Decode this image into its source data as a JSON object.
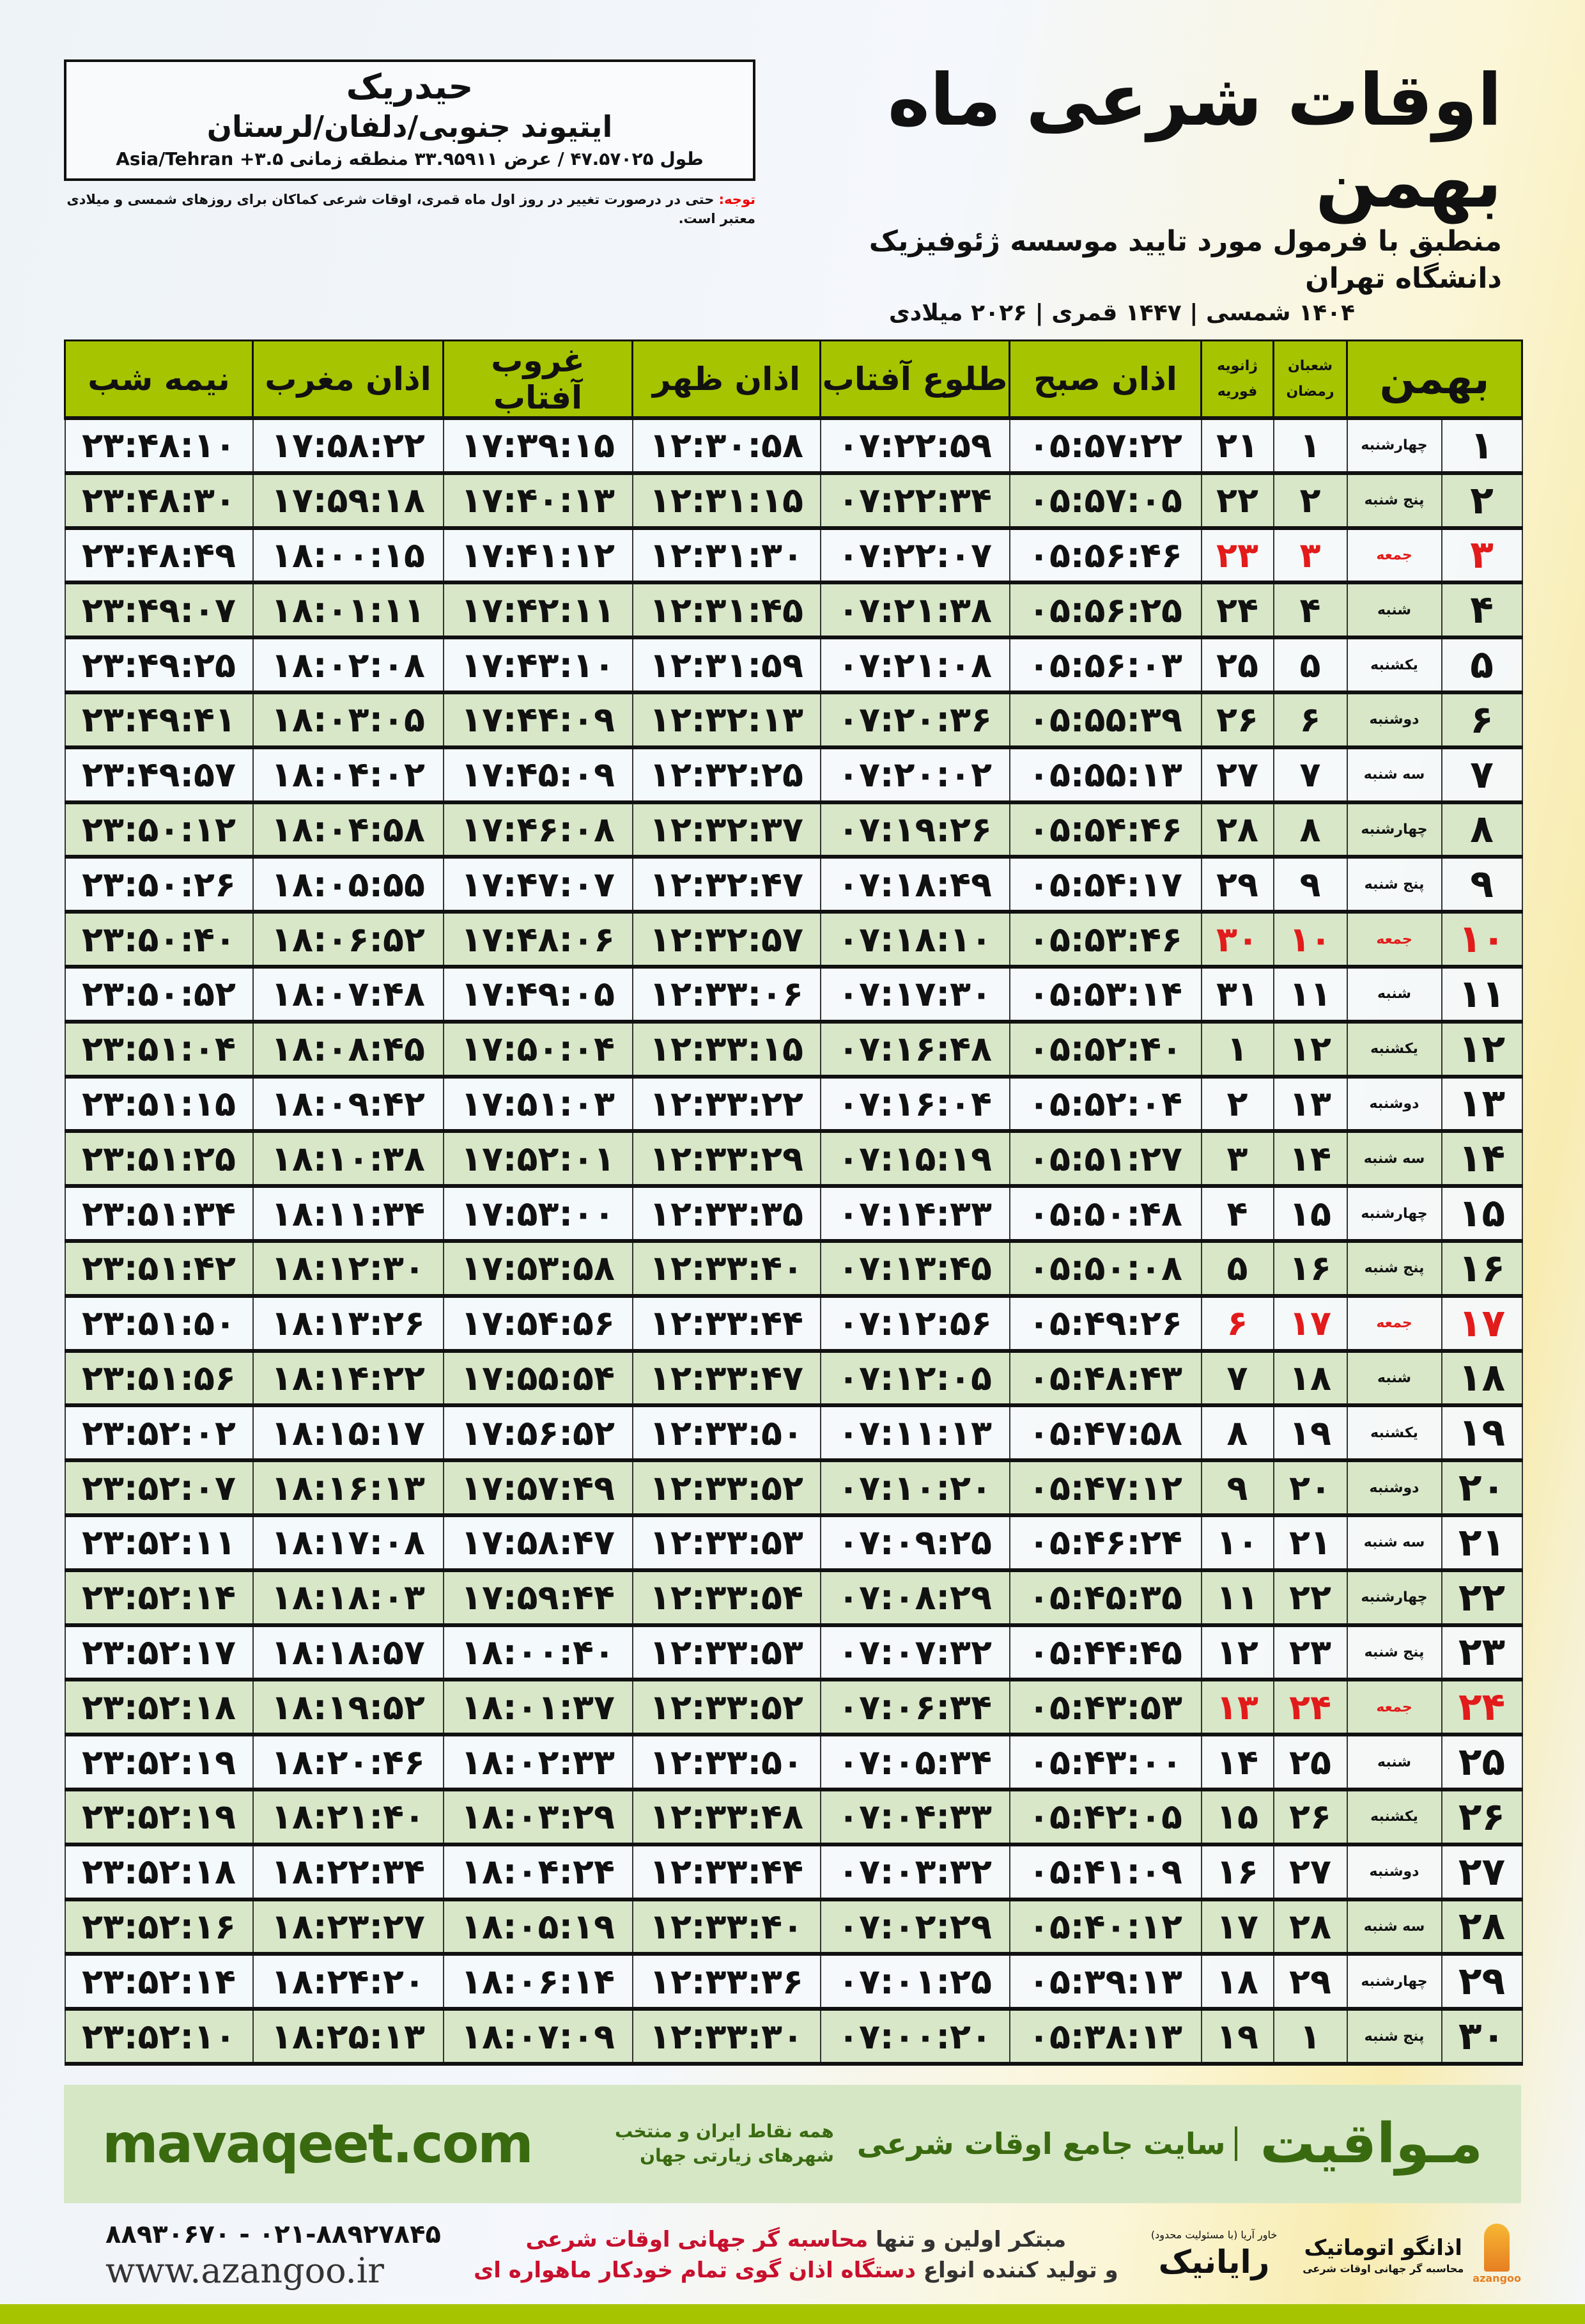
{
  "location": {
    "name": "حیدریک",
    "path": "ایتیوند جنوبی/دلفان/لرستان",
    "coords": "طول ۴۷.۵۷۰۲۵ / عرض ۳۳.۹۵۹۱۱ منطقه زمانی ۳.۵+ Asia/Tehran"
  },
  "header": {
    "title": "اوقات شرعی ماه بهمن",
    "subtitle": "منطبق با فرمول مورد تایید موسسه ژئوفیزیک دانشگاه تهران",
    "dates": "۱۴۰۴ شمسی | ۱۴۴۷ قمری | ۲۰۲۶ میلادی"
  },
  "note": {
    "label": "توجه:",
    "text": " حتی در درصورت تغییر در روز اول ماه قمری، اوقات شرعی کماکان برای روزهای شمسی و میلادی معتبر است."
  },
  "table": {
    "headers": {
      "month": "بهمن",
      "lunar_top": "شعبان",
      "lunar_bottom": "رمضان",
      "greg_top": "ژانویه",
      "greg_bottom": "فوریه",
      "fajr": "اذان صبح",
      "sunrise": "طلوع آفتاب",
      "dhuhr": "اذان ظهر",
      "sunset": "غروب آفتاب",
      "maghrib": "اذان مغرب",
      "midnight": "نیمه شب"
    },
    "highlight_color": "#e21b1b",
    "rows": [
      [
        "۱",
        "چهارشنبه",
        "۱",
        "۲۱",
        "۰۵:۵۷:۲۲",
        "۰۷:۲۲:۵۹",
        "۱۲:۳۰:۵۸",
        "۱۷:۳۹:۱۵",
        "۱۷:۵۸:۲۲",
        "۲۳:۴۸:۱۰"
      ],
      [
        "۲",
        "پنج شنبه",
        "۲",
        "۲۲",
        "۰۵:۵۷:۰۵",
        "۰۷:۲۲:۳۴",
        "۱۲:۳۱:۱۵",
        "۱۷:۴۰:۱۳",
        "۱۷:۵۹:۱۸",
        "۲۳:۴۸:۳۰"
      ],
      [
        "۳",
        "جمعه",
        "۳",
        "۲۳",
        "۰۵:۵۶:۴۶",
        "۰۷:۲۲:۰۷",
        "۱۲:۳۱:۳۰",
        "۱۷:۴۱:۱۲",
        "۱۸:۰۰:۱۵",
        "۲۳:۴۸:۴۹"
      ],
      [
        "۴",
        "شنبه",
        "۴",
        "۲۴",
        "۰۵:۵۶:۲۵",
        "۰۷:۲۱:۳۸",
        "۱۲:۳۱:۴۵",
        "۱۷:۴۲:۱۱",
        "۱۸:۰۱:۱۱",
        "۲۳:۴۹:۰۷"
      ],
      [
        "۵",
        "یکشنبه",
        "۵",
        "۲۵",
        "۰۵:۵۶:۰۳",
        "۰۷:۲۱:۰۸",
        "۱۲:۳۱:۵۹",
        "۱۷:۴۳:۱۰",
        "۱۸:۰۲:۰۸",
        "۲۳:۴۹:۲۵"
      ],
      [
        "۶",
        "دوشنبه",
        "۶",
        "۲۶",
        "۰۵:۵۵:۳۹",
        "۰۷:۲۰:۳۶",
        "۱۲:۳۲:۱۳",
        "۱۷:۴۴:۰۹",
        "۱۸:۰۳:۰۵",
        "۲۳:۴۹:۴۱"
      ],
      [
        "۷",
        "سه شنبه",
        "۷",
        "۲۷",
        "۰۵:۵۵:۱۳",
        "۰۷:۲۰:۰۲",
        "۱۲:۳۲:۲۵",
        "۱۷:۴۵:۰۹",
        "۱۸:۰۴:۰۲",
        "۲۳:۴۹:۵۷"
      ],
      [
        "۸",
        "چهارشنبه",
        "۸",
        "۲۸",
        "۰۵:۵۴:۴۶",
        "۰۷:۱۹:۲۶",
        "۱۲:۳۲:۳۷",
        "۱۷:۴۶:۰۸",
        "۱۸:۰۴:۵۸",
        "۲۳:۵۰:۱۲"
      ],
      [
        "۹",
        "پنج شنبه",
        "۹",
        "۲۹",
        "۰۵:۵۴:۱۷",
        "۰۷:۱۸:۴۹",
        "۱۲:۳۲:۴۷",
        "۱۷:۴۷:۰۷",
        "۱۸:۰۵:۵۵",
        "۲۳:۵۰:۲۶"
      ],
      [
        "۱۰",
        "جمعه",
        "۱۰",
        "۳۰",
        "۰۵:۵۳:۴۶",
        "۰۷:۱۸:۱۰",
        "۱۲:۳۲:۵۷",
        "۱۷:۴۸:۰۶",
        "۱۸:۰۶:۵۲",
        "۲۳:۵۰:۴۰"
      ],
      [
        "۱۱",
        "شنبه",
        "۱۱",
        "۳۱",
        "۰۵:۵۳:۱۴",
        "۰۷:۱۷:۳۰",
        "۱۲:۳۳:۰۶",
        "۱۷:۴۹:۰۵",
        "۱۸:۰۷:۴۸",
        "۲۳:۵۰:۵۲"
      ],
      [
        "۱۲",
        "یکشنبه",
        "۱۲",
        "۱",
        "۰۵:۵۲:۴۰",
        "۰۷:۱۶:۴۸",
        "۱۲:۳۳:۱۵",
        "۱۷:۵۰:۰۴",
        "۱۸:۰۸:۴۵",
        "۲۳:۵۱:۰۴"
      ],
      [
        "۱۳",
        "دوشنبه",
        "۱۳",
        "۲",
        "۰۵:۵۲:۰۴",
        "۰۷:۱۶:۰۴",
        "۱۲:۳۳:۲۲",
        "۱۷:۵۱:۰۳",
        "۱۸:۰۹:۴۲",
        "۲۳:۵۱:۱۵"
      ],
      [
        "۱۴",
        "سه شنبه",
        "۱۴",
        "۳",
        "۰۵:۵۱:۲۷",
        "۰۷:۱۵:۱۹",
        "۱۲:۳۳:۲۹",
        "۱۷:۵۲:۰۱",
        "۱۸:۱۰:۳۸",
        "۲۳:۵۱:۲۵"
      ],
      [
        "۱۵",
        "چهارشنبه",
        "۱۵",
        "۴",
        "۰۵:۵۰:۴۸",
        "۰۷:۱۴:۳۳",
        "۱۲:۳۳:۳۵",
        "۱۷:۵۳:۰۰",
        "۱۸:۱۱:۳۴",
        "۲۳:۵۱:۳۴"
      ],
      [
        "۱۶",
        "پنج شنبه",
        "۱۶",
        "۵",
        "۰۵:۵۰:۰۸",
        "۰۷:۱۳:۴۵",
        "۱۲:۳۳:۴۰",
        "۱۷:۵۳:۵۸",
        "۱۸:۱۲:۳۰",
        "۲۳:۵۱:۴۲"
      ],
      [
        "۱۷",
        "جمعه",
        "۱۷",
        "۶",
        "۰۵:۴۹:۲۶",
        "۰۷:۱۲:۵۶",
        "۱۲:۳۳:۴۴",
        "۱۷:۵۴:۵۶",
        "۱۸:۱۳:۲۶",
        "۲۳:۵۱:۵۰"
      ],
      [
        "۱۸",
        "شنبه",
        "۱۸",
        "۷",
        "۰۵:۴۸:۴۳",
        "۰۷:۱۲:۰۵",
        "۱۲:۳۳:۴۷",
        "۱۷:۵۵:۵۴",
        "۱۸:۱۴:۲۲",
        "۲۳:۵۱:۵۶"
      ],
      [
        "۱۹",
        "یکشنبه",
        "۱۹",
        "۸",
        "۰۵:۴۷:۵۸",
        "۰۷:۱۱:۱۳",
        "۱۲:۳۳:۵۰",
        "۱۷:۵۶:۵۲",
        "۱۸:۱۵:۱۷",
        "۲۳:۵۲:۰۲"
      ],
      [
        "۲۰",
        "دوشنبه",
        "۲۰",
        "۹",
        "۰۵:۴۷:۱۲",
        "۰۷:۱۰:۲۰",
        "۱۲:۳۳:۵۲",
        "۱۷:۵۷:۴۹",
        "۱۸:۱۶:۱۳",
        "۲۳:۵۲:۰۷"
      ],
      [
        "۲۱",
        "سه شنبه",
        "۲۱",
        "۱۰",
        "۰۵:۴۶:۲۴",
        "۰۷:۰۹:۲۵",
        "۱۲:۳۳:۵۳",
        "۱۷:۵۸:۴۷",
        "۱۸:۱۷:۰۸",
        "۲۳:۵۲:۱۱"
      ],
      [
        "۲۲",
        "چهارشنبه",
        "۲۲",
        "۱۱",
        "۰۵:۴۵:۳۵",
        "۰۷:۰۸:۲۹",
        "۱۲:۳۳:۵۴",
        "۱۷:۵۹:۴۴",
        "۱۸:۱۸:۰۳",
        "۲۳:۵۲:۱۴"
      ],
      [
        "۲۳",
        "پنج شنبه",
        "۲۳",
        "۱۲",
        "۰۵:۴۴:۴۵",
        "۰۷:۰۷:۳۲",
        "۱۲:۳۳:۵۳",
        "۱۸:۰۰:۴۰",
        "۱۸:۱۸:۵۷",
        "۲۳:۵۲:۱۷"
      ],
      [
        "۲۴",
        "جمعه",
        "۲۴",
        "۱۳",
        "۰۵:۴۳:۵۳",
        "۰۷:۰۶:۳۴",
        "۱۲:۳۳:۵۲",
        "۱۸:۰۱:۳۷",
        "۱۸:۱۹:۵۲",
        "۲۳:۵۲:۱۸"
      ],
      [
        "۲۵",
        "شنبه",
        "۲۵",
        "۱۴",
        "۰۵:۴۳:۰۰",
        "۰۷:۰۵:۳۴",
        "۱۲:۳۳:۵۰",
        "۱۸:۰۲:۳۳",
        "۱۸:۲۰:۴۶",
        "۲۳:۵۲:۱۹"
      ],
      [
        "۲۶",
        "یکشنبه",
        "۲۶",
        "۱۵",
        "۰۵:۴۲:۰۵",
        "۰۷:۰۴:۳۳",
        "۱۲:۳۳:۴۸",
        "۱۸:۰۳:۲۹",
        "۱۸:۲۱:۴۰",
        "۲۳:۵۲:۱۹"
      ],
      [
        "۲۷",
        "دوشنبه",
        "۲۷",
        "۱۶",
        "۰۵:۴۱:۰۹",
        "۰۷:۰۳:۳۲",
        "۱۲:۳۳:۴۴",
        "۱۸:۰۴:۲۴",
        "۱۸:۲۲:۳۴",
        "۲۳:۵۲:۱۸"
      ],
      [
        "۲۸",
        "سه شنبه",
        "۲۸",
        "۱۷",
        "۰۵:۴۰:۱۲",
        "۰۷:۰۲:۲۹",
        "۱۲:۳۳:۴۰",
        "۱۸:۰۵:۱۹",
        "۱۸:۲۳:۲۷",
        "۲۳:۵۲:۱۶"
      ],
      [
        "۲۹",
        "چهارشنبه",
        "۲۹",
        "۱۸",
        "۰۵:۳۹:۱۳",
        "۰۷:۰۱:۲۵",
        "۱۲:۳۳:۳۶",
        "۱۸:۰۶:۱۴",
        "۱۸:۲۴:۲۰",
        "۲۳:۵۲:۱۴"
      ],
      [
        "۳۰",
        "پنج شنبه",
        "۱",
        "۱۹",
        "۰۵:۳۸:۱۳",
        "۰۷:۰۰:۲۰",
        "۱۲:۳۳:۳۰",
        "۱۸:۰۷:۰۹",
        "۱۸:۲۵:۱۳",
        "۲۳:۵۲:۱۰"
      ]
    ]
  },
  "promo": {
    "logo": "مـواقیت",
    "tagline": "سایت جامع اوقات شرعی",
    "sub": "همه نقاط ایران و منتخب شهرهای زیارتی جهان",
    "url": "mavaqeet.com"
  },
  "footer": {
    "phones": "۰۲۱-۸۸۹۲۷۸۴۵ - ۸۸۹۳۰۶۷۰",
    "website": "www.azangoo.ir",
    "ad_line1_a": "مبتکر اولین و تنها ",
    "ad_line1_b": "محاسبه گر جهانی اوقات شرعی",
    "ad_line2_a": "و تولید کننده انواع ",
    "ad_line2_b": "دستگاه اذان گوی تمام خودکار ماهواره ای",
    "rayanik": "رایانیک",
    "rayanik_sub": "خاور آریا (با مسئولیت محدود)",
    "azangoo": "اذانگو اتوماتیک",
    "azangoo_sub": "محاسبه گر جهانی اوقات شرعی",
    "azangoo_en": "azangoo"
  },
  "colors": {
    "header_green": "#a6c400",
    "row_green": "#d8e7c8",
    "promo_green": "#3a6a10",
    "friday_red": "#e21b1b"
  }
}
